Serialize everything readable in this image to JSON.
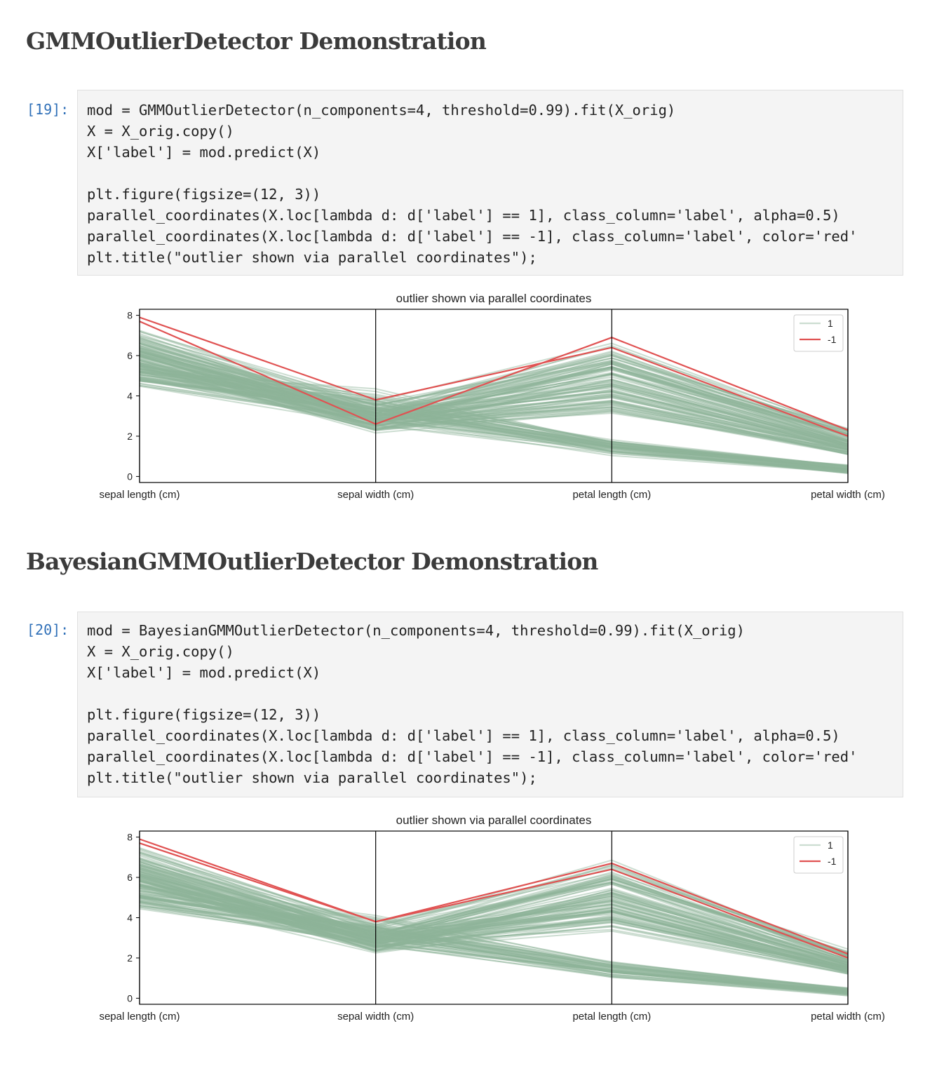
{
  "cells": [
    {
      "heading": "GMMOutlierDetector Demonstration",
      "prompt": "[19]:",
      "code": [
        "mod = GMMOutlierDetector(n_components=4, threshold=0.99).fit(X_orig)",
        "X = X_orig.copy()",
        "X['label'] = mod.predict(X)",
        "",
        "plt.figure(figsize=(12, 3))",
        "parallel_coordinates(X.loc[lambda d: d['label'] == 1], class_column='label', alpha=0.5)",
        "parallel_coordinates(X.loc[lambda d: d['label'] == -1], class_column='label', color='red'",
        "plt.title(\"outlier shown via parallel coordinates\");"
      ]
    },
    {
      "heading": "BayesianGMMOutlierDetector Demonstration",
      "prompt": "[20]:",
      "code": [
        "mod = BayesianGMMOutlierDetector(n_components=4, threshold=0.99).fit(X_orig)",
        "X = X_orig.copy()",
        "X['label'] = mod.predict(X)",
        "",
        "plt.figure(figsize=(12, 3))",
        "parallel_coordinates(X.loc[lambda d: d['label'] == 1], class_column='label', alpha=0.5)",
        "parallel_coordinates(X.loc[lambda d: d['label'] == -1], class_column='label', color='red'",
        "plt.title(\"outlier shown via parallel coordinates\");"
      ]
    }
  ],
  "colors": {
    "inlier": "#8fb49a",
    "outlier": "#e05252",
    "axis": "#000000",
    "prompt": "#3070b8"
  },
  "chart_data": [
    {
      "type": "line",
      "subtype": "parallel_coordinates",
      "title": "outlier shown via parallel coordinates",
      "categories": [
        "sepal length (cm)",
        "sepal width (cm)",
        "petal length (cm)",
        "petal width (cm)"
      ],
      "ylim": [
        -0.3,
        8.3
      ],
      "yticks": [
        0,
        2,
        4,
        6,
        8
      ],
      "legend": {
        "position": "top-right",
        "entries": [
          "1",
          "-1"
        ]
      },
      "series": [
        {
          "name": "-1",
          "color": "red",
          "lines": [
            [
              7.9,
              3.8,
              6.4,
              2.0
            ],
            [
              7.7,
              2.6,
              6.9,
              2.3
            ]
          ]
        },
        {
          "name": "1",
          "color": "green",
          "alpha": 0.5,
          "groups": [
            {
              "sepal_length": [
                4.3,
                5.8
              ],
              "sepal_width": [
                2.3,
                4.4
              ],
              "petal_length": [
                1.0,
                1.9
              ],
              "petal_width": [
                0.1,
                0.6
              ]
            },
            {
              "sepal_length": [
                4.9,
                7.0
              ],
              "sepal_width": [
                2.0,
                3.4
              ],
              "petal_length": [
                3.0,
                5.1
              ],
              "petal_width": [
                1.0,
                1.8
              ]
            },
            {
              "sepal_length": [
                4.9,
                7.7
              ],
              "sepal_width": [
                2.2,
                3.8
              ],
              "petal_length": [
                4.5,
                6.7
              ],
              "petal_width": [
                1.4,
                2.5
              ]
            }
          ]
        }
      ]
    },
    {
      "type": "line",
      "subtype": "parallel_coordinates",
      "title": "outlier shown via parallel coordinates",
      "categories": [
        "sepal length (cm)",
        "sepal width (cm)",
        "petal length (cm)",
        "petal width (cm)"
      ],
      "ylim": [
        -0.3,
        8.3
      ],
      "yticks": [
        0,
        2,
        4,
        6,
        8
      ],
      "legend": {
        "position": "top-right",
        "entries": [
          "1",
          "-1"
        ]
      },
      "series": [
        {
          "name": "-1",
          "color": "red",
          "lines": [
            [
              7.9,
              3.8,
              6.4,
              2.0
            ],
            [
              7.7,
              3.8,
              6.7,
              2.2
            ]
          ]
        },
        {
          "name": "1",
          "color": "green",
          "alpha": 0.5,
          "groups": [
            {
              "sepal_length": [
                4.3,
                5.8
              ],
              "sepal_width": [
                2.3,
                4.4
              ],
              "petal_length": [
                1.0,
                1.9
              ],
              "petal_width": [
                0.1,
                0.6
              ]
            },
            {
              "sepal_length": [
                4.9,
                7.0
              ],
              "sepal_width": [
                2.0,
                3.4
              ],
              "petal_length": [
                3.0,
                5.1
              ],
              "petal_width": [
                1.0,
                1.8
              ]
            },
            {
              "sepal_length": [
                4.9,
                7.7
              ],
              "sepal_width": [
                2.2,
                3.8
              ],
              "petal_length": [
                4.5,
                6.9
              ],
              "petal_width": [
                1.4,
                2.5
              ]
            }
          ]
        }
      ]
    }
  ]
}
